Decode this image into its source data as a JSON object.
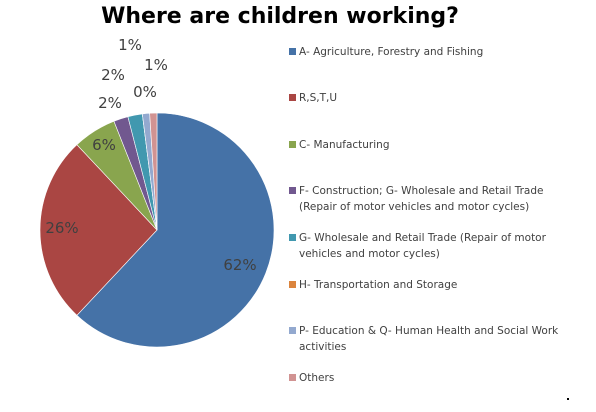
{
  "chart_data": {
    "type": "pie",
    "title": "Where are children working?",
    "slices": [
      {
        "name": "A- Agriculture, Forestry and Fishing",
        "value": 62,
        "label": "62%",
        "color": "#4572a7"
      },
      {
        "name": "R,S,T,U",
        "value": 26,
        "label": "26%",
        "color": "#aa4643"
      },
      {
        "name": "C- Manufacturing",
        "value": 6,
        "label": "6%",
        "color": "#89a54e"
      },
      {
        "name": "F- Construction; G- Wholesale and Retail Trade (Repair of motor vehicles and motor cycles)",
        "value": 2,
        "label": "2%",
        "color": "#71588f"
      },
      {
        "name": "G- Wholesale and Retail Trade (Repair of motor vehicles and motor cycles)",
        "value": 2,
        "label": "2%",
        "color": "#4198af"
      },
      {
        "name": "H- Transportation and Storage",
        "value": 0,
        "label": "0%",
        "color": "#db843d"
      },
      {
        "name": "P- Education & Q- Human Health and Social Work activities",
        "value": 1,
        "label": "1%",
        "color": "#93a9cf"
      },
      {
        "name": "Others",
        "value": 1,
        "label": "1%",
        "color": "#d19392"
      }
    ],
    "legend_position": "right"
  }
}
